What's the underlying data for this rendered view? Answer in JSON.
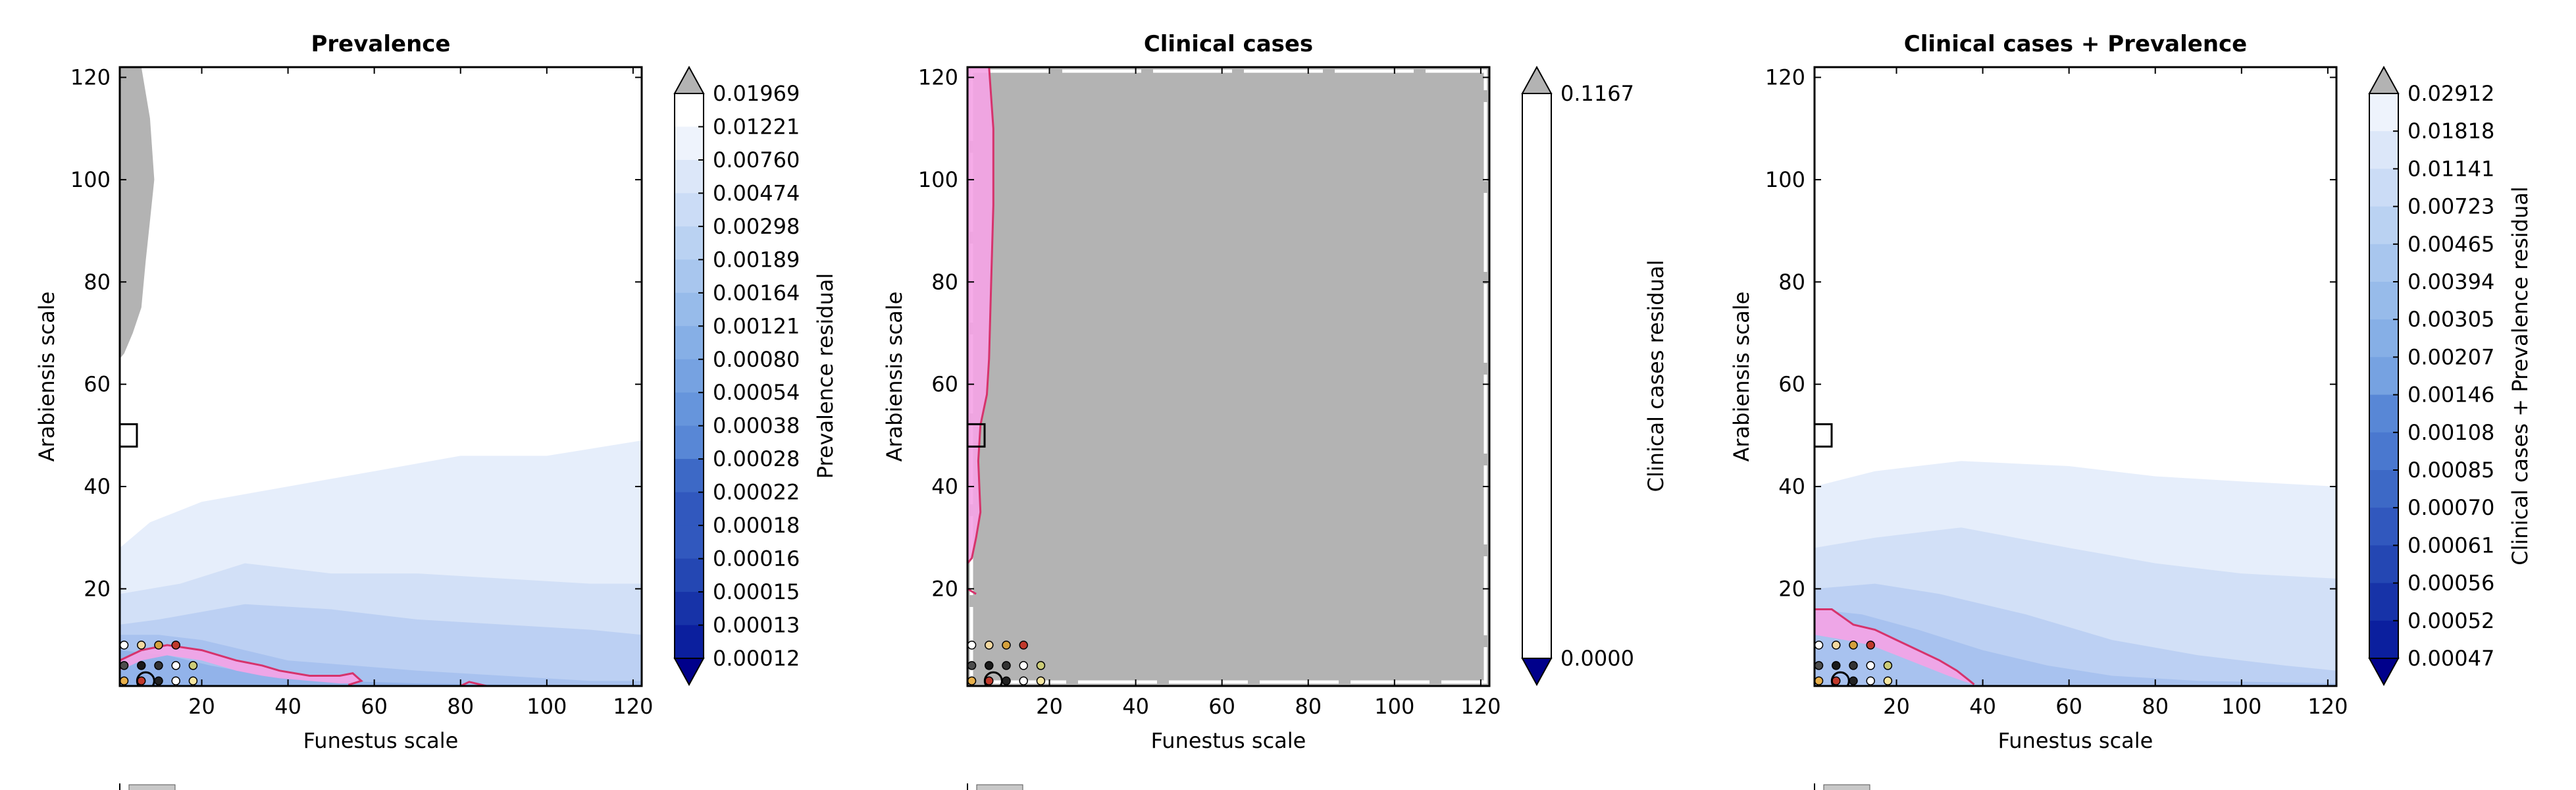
{
  "chart_data": [
    {
      "type": "heatmap",
      "title": "Prevalence",
      "xlabel": "Funestus scale",
      "ylabel": "Arabiensis scale",
      "xlim": [
        1,
        122
      ],
      "ylim": [
        1,
        122
      ],
      "xticks": [
        "20",
        "40",
        "60",
        "80",
        "100",
        "120"
      ],
      "yticks": [
        "20",
        "40",
        "60",
        "80",
        "100",
        "120"
      ],
      "colorbar": {
        "label": "Prevalence residual",
        "levels": [
          "0.01969",
          "0.01221",
          "0.00760",
          "0.00474",
          "0.00298",
          "0.00189",
          "0.00164",
          "0.00121",
          "0.00080",
          "0.00054",
          "0.00038",
          "0.00028",
          "0.00022",
          "0.00018",
          "0.00016",
          "0.00015",
          "0.00013",
          "0.00012"
        ],
        "over_color": "#b3b3b3",
        "under_color": "#00008b"
      },
      "bands": [
        {
          "level": 0.00298,
          "points": [
            [
              1,
              1
            ],
            [
              1,
              28
            ],
            [
              8,
              33
            ],
            [
              20,
              37
            ],
            [
              40,
              40
            ],
            [
              60,
              43
            ],
            [
              80,
              46
            ],
            [
              100,
              46
            ],
            [
              122,
              49
            ],
            [
              122,
              1
            ]
          ]
        },
        {
          "level": 0.00189,
          "points": [
            [
              1,
              1
            ],
            [
              1,
              19
            ],
            [
              15,
              21
            ],
            [
              30,
              25
            ],
            [
              50,
              23
            ],
            [
              70,
              23
            ],
            [
              90,
              22
            ],
            [
              110,
              21
            ],
            [
              122,
              21
            ],
            [
              122,
              1
            ]
          ]
        },
        {
          "level": 0.00121,
          "points": [
            [
              1,
              1
            ],
            [
              1,
              13
            ],
            [
              10,
              14
            ],
            [
              30,
              17
            ],
            [
              50,
              16
            ],
            [
              70,
              14
            ],
            [
              90,
              13
            ],
            [
              110,
              12
            ],
            [
              122,
              11
            ],
            [
              122,
              1
            ]
          ]
        },
        {
          "level": 0.0008,
          "points": [
            [
              1,
              1
            ],
            [
              1,
              11
            ],
            [
              10,
              11
            ],
            [
              20,
              10
            ],
            [
              30,
              8
            ],
            [
              40,
              6
            ],
            [
              55,
              5
            ],
            [
              70,
              4
            ],
            [
              90,
              3
            ],
            [
              110,
              2
            ],
            [
              122,
              2
            ],
            [
              122,
              1
            ]
          ]
        },
        {
          "level": 0.00054,
          "points": [
            [
              1,
              1
            ],
            [
              1,
              8
            ],
            [
              12,
              7
            ],
            [
              22,
              5
            ],
            [
              35,
              3
            ],
            [
              50,
              2
            ],
            [
              70,
              1.5
            ],
            [
              100,
              1.2
            ],
            [
              122,
              1.2
            ],
            [
              122,
              1
            ]
          ]
        }
      ],
      "over_region": [
        [
          1,
          122
        ],
        [
          6,
          122
        ],
        [
          8,
          112
        ],
        [
          9,
          100
        ],
        [
          8,
          92
        ],
        [
          7,
          84
        ],
        [
          6,
          75
        ],
        [
          4,
          70
        ],
        [
          2,
          66
        ],
        [
          1,
          65
        ]
      ],
      "contour": [
        [
          1,
          6
        ],
        [
          6,
          8
        ],
        [
          12,
          9
        ],
        [
          20,
          8
        ],
        [
          28,
          6
        ],
        [
          34,
          5
        ],
        [
          38,
          4
        ],
        [
          45,
          3
        ],
        [
          52,
          3
        ],
        [
          55,
          3.5
        ],
        [
          57,
          2
        ],
        [
          54,
          1.2
        ]
      ],
      "contour_fill": [
        [
          1,
          4
        ],
        [
          6,
          6
        ],
        [
          12,
          7
        ],
        [
          20,
          6
        ],
        [
          28,
          4
        ],
        [
          34,
          3
        ],
        [
          38,
          2.5
        ],
        [
          45,
          2
        ],
        [
          52,
          1.5
        ],
        [
          56,
          1.5
        ],
        [
          57,
          2
        ],
        [
          55,
          3.5
        ],
        [
          52,
          3
        ],
        [
          45,
          3
        ],
        [
          38,
          4
        ],
        [
          34,
          5
        ],
        [
          28,
          6
        ],
        [
          20,
          8
        ],
        [
          12,
          9
        ],
        [
          6,
          8
        ],
        [
          1,
          6
        ]
      ],
      "contour2": [
        [
          80,
          1
        ],
        [
          82,
          1.8
        ],
        [
          86,
          1
        ]
      ],
      "marker": {
        "x": 3,
        "y": 50
      }
    },
    {
      "type": "heatmap",
      "title": "Clinical cases",
      "xlabel": "Funestus scale",
      "ylabel": "Arabiensis scale",
      "xlim": [
        1,
        122
      ],
      "ylim": [
        1,
        122
      ],
      "xticks": [
        "20",
        "40",
        "60",
        "80",
        "100",
        "120"
      ],
      "yticks": [
        "20",
        "40",
        "60",
        "80",
        "100",
        "120"
      ],
      "colorbar": {
        "label": "Clinical cases residual",
        "levels": [
          "0.1167",
          "0.0000"
        ],
        "over_color": "#b3b3b3",
        "under_color": "#00008b"
      },
      "bands": [],
      "over_region": [
        [
          1,
          1
        ],
        [
          1,
          122
        ],
        [
          122,
          122
        ],
        [
          122,
          1
        ]
      ],
      "contour": [
        [
          6,
          122
        ],
        [
          7,
          110
        ],
        [
          7,
          95
        ],
        [
          6.5,
          80
        ],
        [
          6,
          65
        ],
        [
          5.5,
          58
        ],
        [
          4,
          52
        ],
        [
          3.5,
          45
        ],
        [
          4,
          35
        ],
        [
          3,
          30
        ],
        [
          2,
          26
        ],
        [
          1,
          25
        ]
      ],
      "contour_fill": [
        [
          1,
          25
        ],
        [
          2,
          26
        ],
        [
          3,
          30
        ],
        [
          4,
          35
        ],
        [
          3.5,
          45
        ],
        [
          4,
          52
        ],
        [
          5.5,
          58
        ],
        [
          6,
          65
        ],
        [
          6.5,
          80
        ],
        [
          7,
          95
        ],
        [
          7,
          110
        ],
        [
          6,
          122
        ],
        [
          1,
          122
        ]
      ],
      "contour2": [
        [
          1,
          20
        ],
        [
          3,
          19
        ]
      ],
      "marker": {
        "x": 3,
        "y": 50
      }
    },
    {
      "type": "heatmap",
      "title": "Clinical cases + Prevalence",
      "xlabel": "Funestus scale",
      "ylabel": "Arabiensis scale",
      "xlim": [
        1,
        122
      ],
      "ylim": [
        1,
        122
      ],
      "xticks": [
        "20",
        "40",
        "60",
        "80",
        "100",
        "120"
      ],
      "yticks": [
        "20",
        "40",
        "60",
        "80",
        "100",
        "120"
      ],
      "colorbar": {
        "label": "Clinical cases + Prevalence residual",
        "levels": [
          "0.02912",
          "0.01818",
          "0.01141",
          "0.00723",
          "0.00465",
          "0.00394",
          "0.00305",
          "0.00207",
          "0.00146",
          "0.00108",
          "0.00085",
          "0.00070",
          "0.00061",
          "0.00056",
          "0.00052",
          "0.00047"
        ],
        "over_color": "#b3b3b3",
        "under_color": "#00008b"
      },
      "bands": [
        {
          "level": 0.01141,
          "points": [
            [
              1,
              1
            ],
            [
              1,
              40
            ],
            [
              15,
              43
            ],
            [
              35,
              45
            ],
            [
              60,
              44
            ],
            [
              80,
              42
            ],
            [
              100,
              41
            ],
            [
              122,
              40
            ],
            [
              122,
              1
            ]
          ]
        },
        {
          "level": 0.00723,
          "points": [
            [
              1,
              1
            ],
            [
              1,
              28
            ],
            [
              15,
              30
            ],
            [
              35,
              32
            ],
            [
              60,
              28
            ],
            [
              80,
              25
            ],
            [
              100,
              23
            ],
            [
              122,
              22
            ],
            [
              122,
              1
            ]
          ]
        },
        {
          "level": 0.00465,
          "points": [
            [
              1,
              1
            ],
            [
              1,
              20
            ],
            [
              15,
              21
            ],
            [
              30,
              19
            ],
            [
              50,
              15
            ],
            [
              70,
              10
            ],
            [
              90,
              7
            ],
            [
              110,
              5
            ],
            [
              122,
              4
            ],
            [
              122,
              1
            ]
          ]
        },
        {
          "level": 0.00394,
          "points": [
            [
              1,
              1
            ],
            [
              1,
              16
            ],
            [
              12,
              15
            ],
            [
              25,
              12
            ],
            [
              40,
              8
            ],
            [
              55,
              5
            ],
            [
              70,
              3
            ],
            [
              90,
              2
            ],
            [
              122,
              1.5
            ],
            [
              122,
              1
            ]
          ]
        }
      ],
      "over_region": [],
      "contour": [
        [
          1,
          16
        ],
        [
          5,
          16
        ],
        [
          10,
          13
        ],
        [
          15,
          12
        ],
        [
          20,
          10
        ],
        [
          25,
          8
        ],
        [
          30,
          6
        ],
        [
          34,
          4
        ],
        [
          37,
          2
        ],
        [
          38,
          1.3
        ]
      ],
      "contour_fill": [
        [
          1,
          11
        ],
        [
          8,
          10
        ],
        [
          14,
          9
        ],
        [
          20,
          7
        ],
        [
          26,
          5
        ],
        [
          32,
          3
        ],
        [
          36,
          1.8
        ],
        [
          38,
          1.3
        ],
        [
          37,
          2
        ],
        [
          34,
          4
        ],
        [
          30,
          6
        ],
        [
          25,
          8
        ],
        [
          20,
          10
        ],
        [
          15,
          12
        ],
        [
          10,
          13
        ],
        [
          5,
          16
        ],
        [
          1,
          16
        ]
      ],
      "contour2": [],
      "marker": {
        "x": 3,
        "y": 50
      }
    }
  ],
  "points": [
    {
      "x": 2,
      "y": 9,
      "color": "#ffffff"
    },
    {
      "x": 6,
      "y": 9,
      "color": "#f2d8a0"
    },
    {
      "x": 10,
      "y": 9,
      "color": "#d4a03c"
    },
    {
      "x": 14,
      "y": 9,
      "color": "#c0392b"
    },
    {
      "x": 2,
      "y": 5,
      "color": "#4d4d4d"
    },
    {
      "x": 6,
      "y": 5,
      "color": "#1a1a1a"
    },
    {
      "x": 10,
      "y": 5,
      "color": "#333333"
    },
    {
      "x": 14,
      "y": 5,
      "color": "#ffffff"
    },
    {
      "x": 18,
      "y": 5,
      "color": "#cccc77"
    },
    {
      "x": 2,
      "y": 2,
      "color": "#e8b04b"
    },
    {
      "x": 6,
      "y": 2,
      "color": "#c0392b"
    },
    {
      "x": 10,
      "y": 2,
      "color": "#222222"
    },
    {
      "x": 14,
      "y": 2,
      "color": "#ffffff"
    },
    {
      "x": 18,
      "y": 2,
      "color": "#f5e6a0"
    }
  ],
  "band_colors": [
    "#e6eefb",
    "#d2e0f7",
    "#bcd0f3",
    "#a8c2ef",
    "#92b3ea"
  ],
  "band_colors_3": [
    "#e6eefb",
    "#d2e0f7",
    "#bcd0f3",
    "#a8c2ef"
  ],
  "contour_color": "#d6336c",
  "contour_fill_color": "#f5a3e6"
}
